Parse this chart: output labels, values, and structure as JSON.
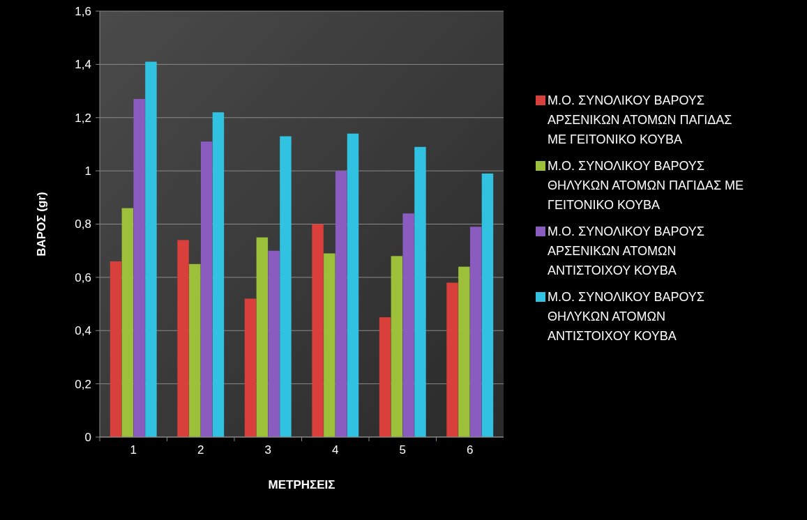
{
  "chart_data": {
    "type": "bar",
    "xlabel": "ΜΕΤΡΗΣΕΙΣ",
    "ylabel": "ΒΑΡΟΣ (gr)",
    "categories": [
      "1",
      "2",
      "3",
      "4",
      "5",
      "6"
    ],
    "series": [
      {
        "name": "Μ.Ο. ΣΥΝΟΛΙΚΟΥ ΒΑΡΟΥΣ ΑΡΣΕΝΙΚΩΝ ΑΤΟΜΩΝ ΠΑΓΙΔΑΣ ΜΕ ΓΕΙΤΟΝΙΚΟ ΚΟΥΒΑ",
        "color": "#d9403c",
        "values": [
          0.66,
          0.74,
          0.52,
          0.8,
          0.45,
          0.58
        ]
      },
      {
        "name": "Μ.Ο. ΣΥΝΟΛΙΚΟΥ ΒΑΡΟΥΣ ΘΗΛΥΚΩΝ ΑΤΟΜΩΝ ΠΑΓΙΔΑΣ ΜΕ ΓΕΙΤΟΝΙΚΟ ΚΟΥΒΑ",
        "color": "#9dc03a",
        "values": [
          0.86,
          0.65,
          0.75,
          0.69,
          0.68,
          0.64
        ]
      },
      {
        "name": "Μ.Ο. ΣΥΝΟΛΙΚΟΥ ΒΑΡΟΥΣ ΑΡΣΕΝΙΚΩΝ ΑΤΟΜΩΝ ΑΝΤΙΣΤΟΙΧΟΥ ΚΟΥΒΑ",
        "color": "#8a5cc0",
        "values": [
          1.27,
          1.11,
          0.7,
          1.0,
          0.84,
          0.79
        ]
      },
      {
        "name": "Μ.Ο. ΣΥΝΟΛΙΚΟΥ ΒΑΡΟΥΣ ΘΗΛΥΚΩΝ ΑΤΟΜΩΝ ΑΝΤΙΣΤΟΙΧΟΥ ΚΟΥΒΑ",
        "color": "#31c2e2",
        "values": [
          1.41,
          1.22,
          1.13,
          1.14,
          1.09,
          0.99
        ]
      }
    ],
    "ylim": [
      0,
      1.6
    ],
    "yticks": [
      0,
      {
        "value": 0.2,
        "label": "0,2"
      },
      {
        "value": 0.4,
        "label": "0,4"
      },
      {
        "value": 0.6,
        "label": "0,6"
      },
      {
        "value": 0.8,
        "label": "0,8"
      },
      1,
      {
        "value": 1.2,
        "label": "1,2"
      },
      {
        "value": 1.4,
        "label": "1,4"
      },
      {
        "value": 1.6,
        "label": "1,6"
      }
    ],
    "grid": "y",
    "legend": "right"
  }
}
